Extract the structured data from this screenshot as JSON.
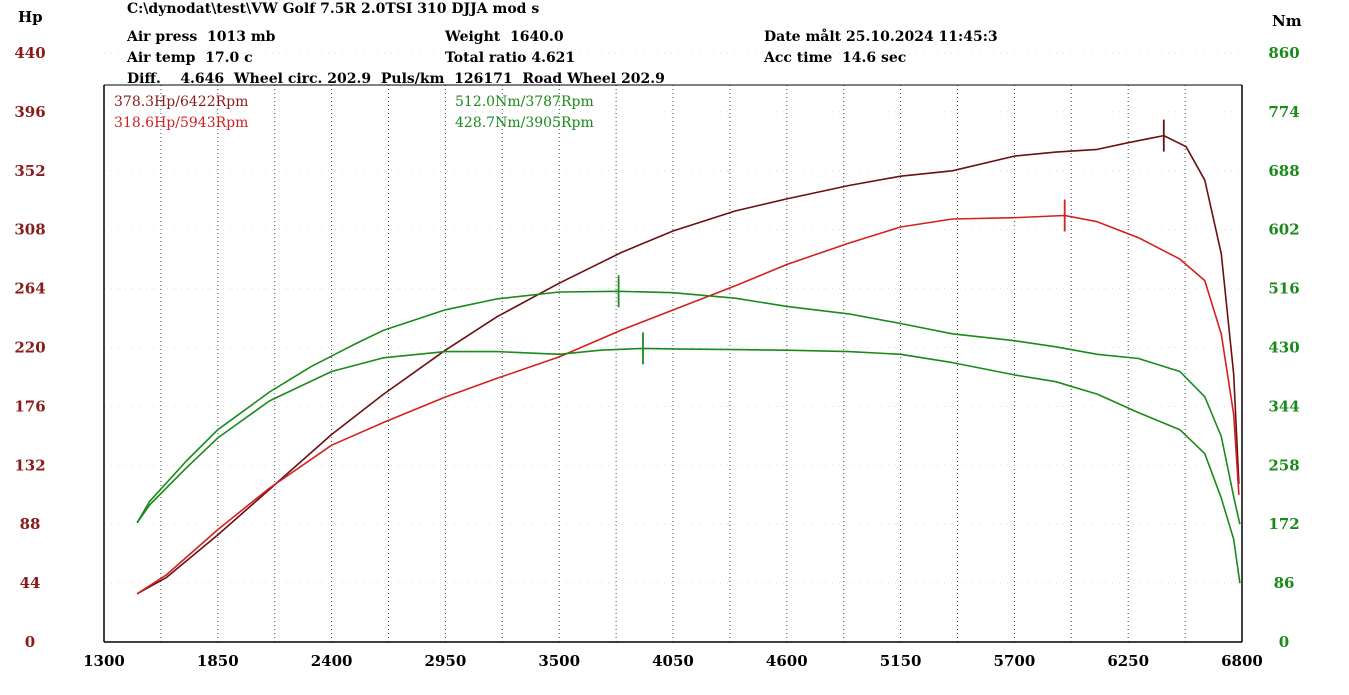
{
  "header": {
    "file": "C:\\dynodat\\test\\VW Golf 7.5R 2.0TSI 310 DJJA mod s",
    "air_press": "Air press  1013 mb",
    "air_temp": "Air temp  17.0 c",
    "diff": "Diff.    4.646  Wheel circ. 202.9  Puls/km  126171  Road Wheel 202.9",
    "weight": "Weight  1640.0",
    "total_ratio": "Total ratio 4.621",
    "date": "Date målt 25.10.2024 11:45:3",
    "acc_time": "Acc time  14.6 sec"
  },
  "peaks": {
    "hp1": "378.3Hp/6422Rpm",
    "hp2": "318.6Hp/5943Rpm",
    "nm1": "512.0Nm/3787Rpm",
    "nm2": "428.7Nm/3905Rpm"
  },
  "colors": {
    "hp_dark": "#6b1010",
    "hp_red": "#d42020",
    "nm_green": "#1a8a1a",
    "left_axis": "#8b1a1a",
    "right_axis": "#1a8a1a"
  },
  "chart_data": {
    "type": "line",
    "ylabel_left": "Hp",
    "ylabel_right": "Nm",
    "x_ticks": [
      1300,
      1850,
      2400,
      2950,
      3500,
      4050,
      4600,
      5150,
      5700,
      6250,
      6800
    ],
    "xlim": [
      1300,
      6800
    ],
    "y_left_ticks": [
      0,
      44,
      88,
      132,
      176,
      220,
      264,
      308,
      352,
      396,
      440
    ],
    "y_left_lim": [
      0,
      440
    ],
    "y_right_ticks": [
      0,
      86,
      172,
      258,
      344,
      430,
      516,
      602,
      688,
      774,
      860
    ],
    "y_right_lim": [
      0,
      860
    ],
    "grid": "vertical dotted",
    "series": [
      {
        "axis": "left",
        "color": "#6b1010",
        "points": [
          [
            1460,
            36
          ],
          [
            1600,
            48
          ],
          [
            1850,
            80
          ],
          [
            2100,
            114
          ],
          [
            2400,
            155
          ],
          [
            2650,
            185
          ],
          [
            2950,
            218
          ],
          [
            3200,
            243
          ],
          [
            3500,
            268
          ],
          [
            3800,
            291
          ],
          [
            4050,
            307
          ],
          [
            4350,
            322
          ],
          [
            4600,
            331
          ],
          [
            4900,
            341
          ],
          [
            5150,
            348
          ],
          [
            5400,
            352
          ],
          [
            5700,
            363
          ],
          [
            5900,
            366
          ],
          [
            6100,
            368
          ],
          [
            6250,
            373
          ],
          [
            6422,
            378.3
          ],
          [
            6530,
            370
          ],
          [
            6620,
            345
          ],
          [
            6700,
            290
          ],
          [
            6760,
            200
          ],
          [
            6785,
            118
          ]
        ]
      },
      {
        "axis": "left",
        "color": "#d42020",
        "points": [
          [
            1460,
            36
          ],
          [
            1600,
            50
          ],
          [
            1850,
            84
          ],
          [
            2100,
            115
          ],
          [
            2400,
            147
          ],
          [
            2650,
            164
          ],
          [
            2950,
            183
          ],
          [
            3200,
            197
          ],
          [
            3500,
            213
          ],
          [
            3800,
            233
          ],
          [
            4050,
            248
          ],
          [
            4350,
            266
          ],
          [
            4600,
            282
          ],
          [
            4900,
            298
          ],
          [
            5150,
            310
          ],
          [
            5400,
            316
          ],
          [
            5700,
            317
          ],
          [
            5943,
            318.6
          ],
          [
            6100,
            314
          ],
          [
            6300,
            302
          ],
          [
            6500,
            286
          ],
          [
            6620,
            270
          ],
          [
            6700,
            230
          ],
          [
            6760,
            170
          ],
          [
            6785,
            110
          ]
        ]
      },
      {
        "axis": "right",
        "color": "#1a8a1a",
        "points": [
          [
            1460,
            174
          ],
          [
            1520,
            205
          ],
          [
            1700,
            265
          ],
          [
            1850,
            310
          ],
          [
            2100,
            365
          ],
          [
            2300,
            402
          ],
          [
            2500,
            433
          ],
          [
            2650,
            455
          ],
          [
            2950,
            485
          ],
          [
            3200,
            501
          ],
          [
            3500,
            511
          ],
          [
            3787,
            512
          ],
          [
            4050,
            510
          ],
          [
            4350,
            502
          ],
          [
            4600,
            490
          ],
          [
            4900,
            479
          ],
          [
            5150,
            465
          ],
          [
            5400,
            450
          ],
          [
            5700,
            440
          ],
          [
            5900,
            431
          ],
          [
            6100,
            420
          ],
          [
            6300,
            414
          ],
          [
            6500,
            395
          ],
          [
            6620,
            358
          ],
          [
            6700,
            300
          ],
          [
            6760,
            212
          ],
          [
            6790,
            172
          ]
        ]
      },
      {
        "axis": "right",
        "color": "#1a8a1a",
        "points": [
          [
            1460,
            174
          ],
          [
            1520,
            200
          ],
          [
            1700,
            255
          ],
          [
            1850,
            298
          ],
          [
            2100,
            352
          ],
          [
            2400,
            395
          ],
          [
            2650,
            415
          ],
          [
            2950,
            424
          ],
          [
            3200,
            424
          ],
          [
            3500,
            420
          ],
          [
            3700,
            426
          ],
          [
            3905,
            428.7
          ],
          [
            4050,
            428
          ],
          [
            4350,
            427
          ],
          [
            4600,
            426
          ],
          [
            4900,
            424
          ],
          [
            5150,
            420
          ],
          [
            5400,
            408
          ],
          [
            5700,
            390
          ],
          [
            5900,
            380
          ],
          [
            6100,
            362
          ],
          [
            6300,
            335
          ],
          [
            6500,
            310
          ],
          [
            6620,
            275
          ],
          [
            6700,
            210
          ],
          [
            6760,
            150
          ],
          [
            6790,
            86
          ]
        ]
      }
    ],
    "markers": [
      {
        "axis": "left",
        "x": 6422,
        "y": 378.3,
        "color": "#6b1010"
      },
      {
        "axis": "left",
        "x": 5943,
        "y": 318.6,
        "color": "#d42020"
      },
      {
        "axis": "right",
        "x": 3787,
        "y": 512,
        "color": "#1a8a1a"
      },
      {
        "axis": "right",
        "x": 3905,
        "y": 428.7,
        "color": "#1a8a1a"
      }
    ]
  }
}
